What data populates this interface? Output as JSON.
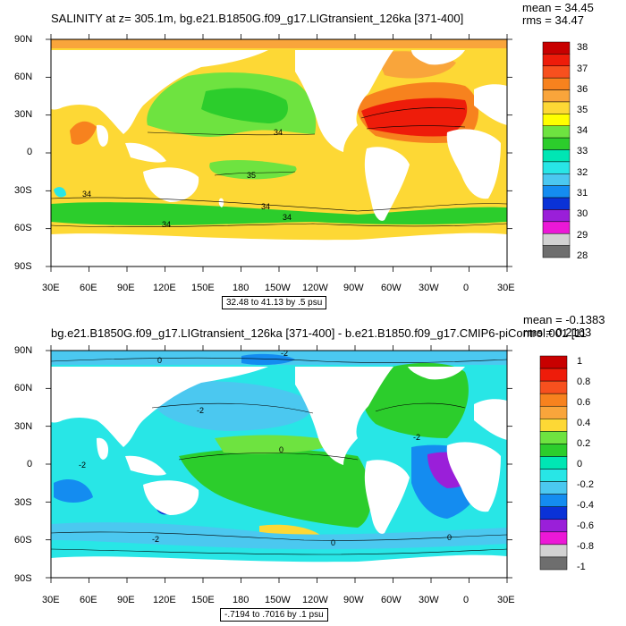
{
  "panel_top": {
    "title": "SALINITY at z= 305.1m, bg.e21.B1850G.f09_g17.LIGtransient_126ka [371-400]",
    "mean": "mean = 34.45",
    "rms": "rms = 34.47",
    "range": "32.48 to 41.13 by .5 psu",
    "lat_labels": [
      "90N",
      "60N",
      "30N",
      "0",
      "30S",
      "60S",
      "90S"
    ],
    "lon_labels": [
      "30E",
      "60E",
      "90E",
      "120E",
      "150E",
      "180",
      "150W",
      "120W",
      "90W",
      "60W",
      "30W",
      "0",
      "30E"
    ],
    "colorbar": {
      "labels": [
        "38",
        "37",
        "36",
        "35",
        "34",
        "33",
        "32",
        "31",
        "30",
        "29",
        "28"
      ],
      "colors": [
        "#c80000",
        "#ee1c0a",
        "#f7501e",
        "#f7821e",
        "#f9a53b",
        "#fdd835",
        "#ffff00",
        "#6ee340",
        "#2ccd2c",
        "#00e6b4",
        "#28e6e6",
        "#4bc8f0",
        "#148cf0",
        "#0a32d7",
        "#9a1fd9",
        "#ec18d7",
        "#d2d2d2",
        "#6e6e6e"
      ]
    },
    "contour_labels": [
      "34",
      "34",
      "34",
      "35",
      "34",
      "34"
    ]
  },
  "panel_bottom": {
    "title": "bg.e21.B1850G.f09_g17.LIGtransient_126ka [371-400] - b.e21.B1850.f09_g17.CMIP6-piControl.001 [11",
    "mean": "mean = -0.1383",
    "rms": "rms = 0.2163",
    "range": "-.7194 to .7016 by .1 psu",
    "lat_labels": [
      "90N",
      "60N",
      "30N",
      "0",
      "30S",
      "60S",
      "90S"
    ],
    "lon_labels": [
      "30E",
      "60E",
      "90E",
      "120E",
      "150E",
      "180",
      "150W",
      "120W",
      "90W",
      "60W",
      "30W",
      "0",
      "30E"
    ],
    "colorbar": {
      "labels": [
        "1",
        "0.8",
        "0.6",
        "0.4",
        "0.2",
        "0",
        "-0.2",
        "-0.4",
        "-0.6",
        "-0.8",
        "-1"
      ],
      "colors": [
        "#c80000",
        "#ee1c0a",
        "#f7501e",
        "#f7821e",
        "#f9a53b",
        "#fdd835",
        "#6ee340",
        "#2ccd2c",
        "#00e6b4",
        "#28e6e6",
        "#4bc8f0",
        "#148cf0",
        "#0a32d7",
        "#9a1fd9",
        "#ec18d7",
        "#d2d2d2",
        "#6e6e6e"
      ]
    },
    "contour_labels": [
      "-2",
      "-2",
      "0",
      "-2",
      "-2",
      "-2",
      "0",
      "0",
      "0"
    ]
  },
  "colors": {
    "frame": "#000000",
    "land": "#ffffff",
    "top_base": "#fdd835",
    "top_green": "#2ccd2c",
    "top_orange": "#f7821e",
    "top_red": "#ee1c0a",
    "top_cyan": "#28e6e6",
    "bot_base": "#28e6e6",
    "bot_green": "#2ccd2c",
    "bot_blue": "#148cf0",
    "bot_purple": "#9a1fd9",
    "bot_light": "#4bc8f0"
  }
}
